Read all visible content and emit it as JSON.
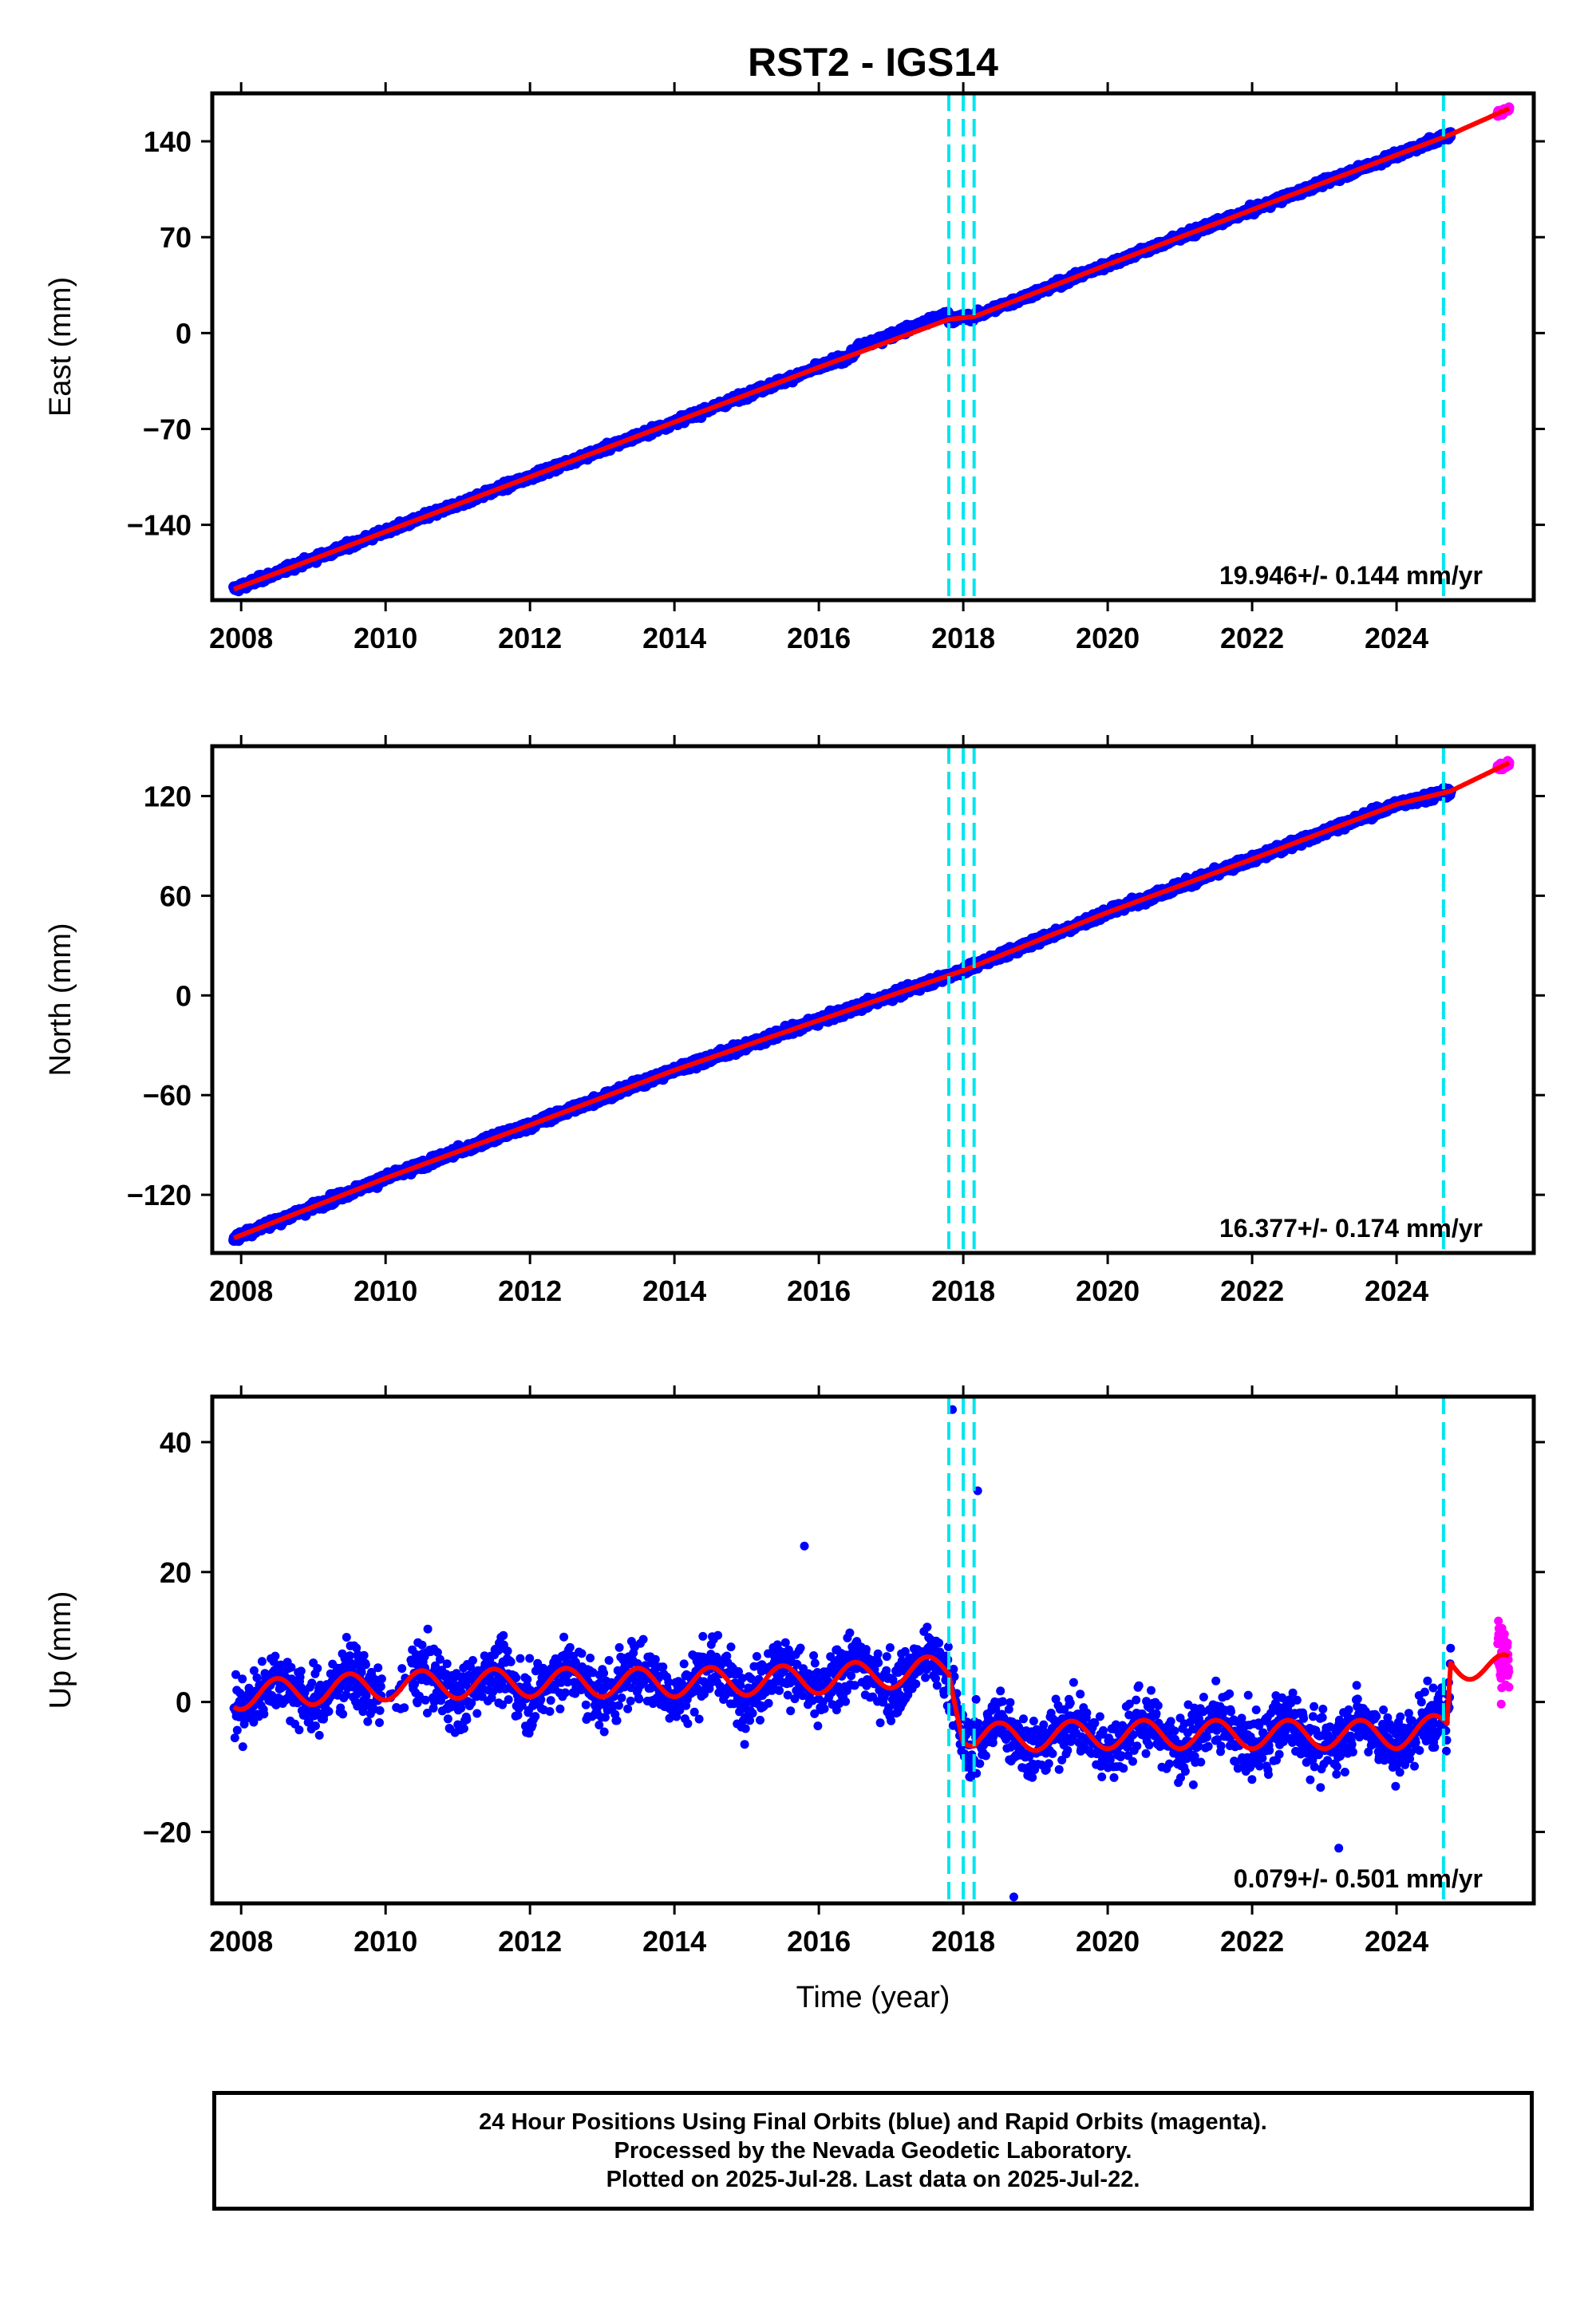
{
  "title": "RST2 - IGS14",
  "colors": {
    "final_orbits": "#0000ff",
    "rapid_orbits": "#ff00ff",
    "model": "#ff0000",
    "events": "#00e5ee",
    "frame": "#000000"
  },
  "footer": {
    "line1": "24 Hour Positions Using Final Orbits (blue) and Rapid Orbits (magenta).",
    "line2": "Processed by the Nevada Geodetic Laboratory.",
    "line3": "Plotted on 2025-Jul-28. Last data on 2025-Jul-22."
  },
  "chart_data": [
    {
      "type": "scatter",
      "name": "east",
      "ylabel": "East (mm)",
      "xlabel": "",
      "xlim": [
        2007.6,
        2025.9
      ],
      "ylim": [
        -195,
        175
      ],
      "xticks": [
        2008,
        2010,
        2012,
        2014,
        2016,
        2018,
        2020,
        2022,
        2024
      ],
      "xtick_labels": [
        "2008",
        "2010",
        "2012",
        "2014",
        "2016",
        "2018",
        "2020",
        "2022",
        "2024"
      ],
      "yticks": [
        -140,
        -70,
        0,
        70,
        140
      ],
      "ytick_labels": [
        "−140",
        "−70",
        "0",
        "70",
        "140"
      ],
      "rate_label": "19.946+/- 0.144 mm/yr",
      "events": [
        2017.8,
        2018.0,
        2018.15,
        2024.65
      ],
      "final_range": [
        2007.9,
        2024.75
      ],
      "rapid_range": [
        2025.4,
        2025.56
      ],
      "model": {
        "x": [
          2007.9,
          2010,
          2012,
          2014,
          2016,
          2017.8,
          2018.15,
          2020,
          2022,
          2024,
          2024.75,
          2025.56
        ],
        "y": [
          -187,
          -145,
          -105,
          -65,
          -25,
          10,
          12,
          50,
          90,
          130,
          145,
          164
        ]
      }
    },
    {
      "type": "scatter",
      "name": "north",
      "ylabel": "North (mm)",
      "xlabel": "",
      "xlim": [
        2007.6,
        2025.9
      ],
      "ylim": [
        -155,
        150
      ],
      "xticks": [
        2008,
        2010,
        2012,
        2014,
        2016,
        2018,
        2020,
        2022,
        2024
      ],
      "xtick_labels": [
        "2008",
        "2010",
        "2012",
        "2014",
        "2016",
        "2018",
        "2020",
        "2022",
        "2024"
      ],
      "yticks": [
        -120,
        -60,
        0,
        60,
        120
      ],
      "ytick_labels": [
        "−120",
        "−60",
        "0",
        "60",
        "120"
      ],
      "rate_label": "16.377+/- 0.174 mm/yr",
      "events": [
        2017.8,
        2018.0,
        2018.15,
        2024.65
      ],
      "final_range": [
        2007.9,
        2024.75
      ],
      "rapid_range": [
        2025.4,
        2025.56
      ],
      "model": {
        "x": [
          2007.9,
          2010,
          2012,
          2014,
          2016,
          2018,
          2020,
          2022,
          2024,
          2024.75,
          2025.56
        ],
        "y": [
          -146,
          -110,
          -78,
          -45,
          -15,
          15,
          50,
          82,
          115,
          123,
          140
        ]
      }
    },
    {
      "type": "scatter",
      "name": "up",
      "ylabel": "Up (mm)",
      "xlabel": "Time (year)",
      "xlim": [
        2007.6,
        2025.9
      ],
      "ylim": [
        -31,
        47
      ],
      "xticks": [
        2008,
        2010,
        2012,
        2014,
        2016,
        2018,
        2020,
        2022,
        2024
      ],
      "xtick_labels": [
        "2008",
        "2010",
        "2012",
        "2014",
        "2016",
        "2018",
        "2020",
        "2022",
        "2024"
      ],
      "yticks": [
        -20,
        0,
        20,
        40
      ],
      "ytick_labels": [
        "−20",
        "0",
        "20",
        "40"
      ],
      "rate_label": "0.079+/- 0.501 mm/yr",
      "events": [
        2017.8,
        2018.0,
        2018.15,
        2024.65
      ],
      "final_range": [
        2007.9,
        2024.75
      ],
      "rapid_range": [
        2025.4,
        2025.56
      ],
      "model": {
        "x": [
          2007.9,
          2010,
          2012,
          2014,
          2016,
          2017.8,
          2018.0,
          2018.15,
          2020,
          2022,
          2024,
          2024.7,
          2024.75,
          2025.56
        ],
        "y": [
          1.0,
          2.5,
          3.0,
          3.0,
          3.5,
          5.0,
          -4.0,
          -5.5,
          -5.0,
          -5.0,
          -5.0,
          -4.0,
          6.0,
          5.0
        ]
      },
      "seasonal_amplitude": 2.2,
      "outliers": [
        {
          "x": 2017.85,
          "y": 45
        },
        {
          "x": 2018.2,
          "y": 32.5
        },
        {
          "x": 2018.7,
          "y": -30
        },
        {
          "x": 2023.2,
          "y": -22.5
        },
        {
          "x": 2015.8,
          "y": 24
        }
      ]
    }
  ]
}
